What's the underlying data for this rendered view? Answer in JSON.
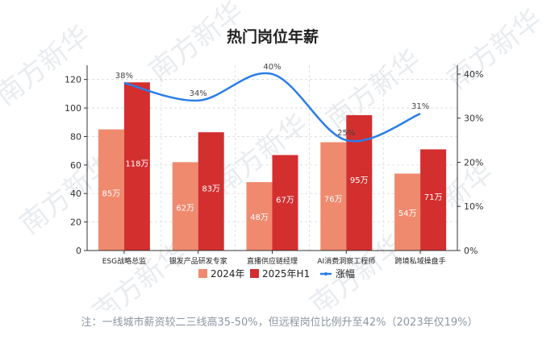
{
  "page": {
    "note": "注：一线城市薪资较二三线高35-50%，但远程岗位比例升至42%（2023年仅19%）",
    "watermark": "南方新华"
  },
  "chart_data": {
    "type": "bar",
    "title": "热门岗位年薪",
    "categories": [
      "ESG战略总监",
      "银发产品研发专家",
      "直播供应链经理",
      "AI消费洞察工程师",
      "跨境私域操盘手"
    ],
    "series": [
      {
        "name": "2024年",
        "values": [
          85,
          62,
          48,
          76,
          54
        ],
        "labels": [
          "85万",
          "62万",
          "48万",
          "76万",
          "54万"
        ],
        "color": "#ef8a6f"
      },
      {
        "name": "2025年H1",
        "values": [
          118,
          83,
          67,
          95,
          71
        ],
        "labels": [
          "118万",
          "83万",
          "67万",
          "95万",
          "71万"
        ],
        "color": "#d32f2f"
      }
    ],
    "line": {
      "name": "涨幅",
      "values": [
        38,
        34,
        40,
        25,
        31
      ],
      "labels": [
        "38%",
        "34%",
        "40%",
        "25%",
        "31%"
      ],
      "color": "#2b7de9"
    },
    "ylim": [
      0,
      130
    ],
    "yticks": [
      0,
      20,
      40,
      60,
      80,
      100,
      120
    ],
    "y2lim": [
      0,
      42
    ],
    "y2ticks": [
      0,
      10,
      20,
      30,
      40
    ],
    "y2tick_labels": [
      "0%",
      "10%",
      "20%",
      "30%",
      "40%"
    ],
    "grid": true,
    "legend_position": "bottom"
  }
}
